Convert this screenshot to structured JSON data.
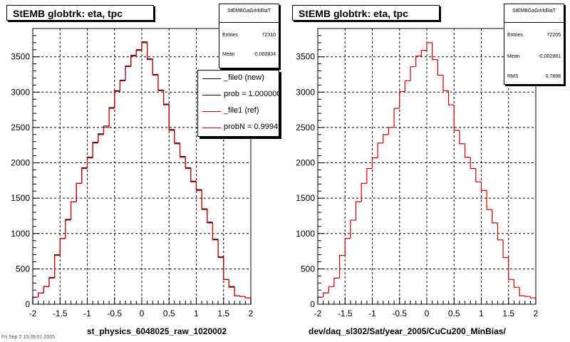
{
  "panels": [
    {
      "title": "StEMB globtrk: eta, tpc",
      "stats": {
        "name": "StEMBGaGrlrkEtaT",
        "rows": [
          {
            "key": "Entries",
            "value": "72310"
          },
          {
            "key": "Mean",
            "value": "-0.002834"
          }
        ]
      },
      "legend": [
        {
          "label": "_file0 (new)",
          "color": "#000000"
        },
        {
          "label": "prob = 1.000000",
          "color": "#000000"
        },
        {
          "label": "_file1 (ref)",
          "color": "#cc0000"
        },
        {
          "label": "probN = 0.99949",
          "color": "#cc0000"
        }
      ],
      "xtitle": "st_physics_6048025_raw_1020002"
    },
    {
      "title": "StEMB globtrk: eta, tpc",
      "stats": {
        "name": "StEMBGaGrlrkEtaT",
        "rows": [
          {
            "key": "Entries",
            "value": "72205"
          },
          {
            "key": "Mean",
            "value": "-0.002881"
          },
          {
            "key": "RMS",
            "value": "0.7898"
          }
        ]
      },
      "xtitle": "dev/daq_sl302/Sat/year_2005/CuCu200_MinBias/"
    }
  ],
  "footer": "Fri Sep 2 15:39:01 2005",
  "chart_data": [
    {
      "type": "bar",
      "title": "StEMB globtrk: eta, tpc",
      "xlabel": "st_physics_6048025_raw_1020002",
      "xlim": [
        -2,
        2
      ],
      "ylim": [
        0,
        3900
      ],
      "xticks": [
        -2,
        -1.5,
        -1,
        -0.5,
        0,
        0.5,
        1,
        1.5,
        2
      ],
      "yticks": [
        0,
        500,
        1000,
        1500,
        2000,
        2500,
        3000,
        3500
      ],
      "grid": true,
      "legend_position": "top-right",
      "bin_edges": [
        -2.0,
        -1.9,
        -1.8,
        -1.7,
        -1.6,
        -1.5,
        -1.4,
        -1.3,
        -1.2,
        -1.1,
        -1.0,
        -0.9,
        -0.8,
        -0.7,
        -0.6,
        -0.5,
        -0.4,
        -0.3,
        -0.2,
        -0.1,
        0.0,
        0.1,
        0.2,
        0.3,
        0.4,
        0.5,
        0.6,
        0.7,
        0.8,
        0.9,
        1.0,
        1.1,
        1.2,
        1.3,
        1.4,
        1.5,
        1.6,
        1.7,
        1.8,
        1.9,
        2.0
      ],
      "series": [
        {
          "name": "_file0 (new)",
          "color": "#000000",
          "values": [
            100,
            160,
            250,
            380,
            700,
            930,
            1200,
            1450,
            1710,
            1930,
            2080,
            2290,
            2410,
            2520,
            2780,
            3020,
            3170,
            3370,
            3520,
            3600,
            3710,
            3470,
            3250,
            3030,
            2830,
            2470,
            2280,
            2090,
            1930,
            1740,
            1620,
            1350,
            1160,
            920,
            670,
            350,
            250,
            120,
            110,
            90
          ]
        },
        {
          "name": "_file1 (ref)",
          "color": "#cc0000",
          "values": [
            100,
            160,
            250,
            370,
            690,
            930,
            1190,
            1450,
            1710,
            1920,
            2070,
            2280,
            2400,
            2500,
            2770,
            3010,
            3160,
            3360,
            3510,
            3590,
            3700,
            3460,
            3240,
            3020,
            2820,
            2460,
            2270,
            2080,
            1920,
            1730,
            1610,
            1340,
            1150,
            910,
            660,
            350,
            240,
            120,
            110,
            90
          ]
        }
      ]
    },
    {
      "type": "bar",
      "title": "StEMB globtrk: eta, tpc",
      "xlabel": "dev/daq_sl302/Sat/year_2005/CuCu200_MinBias/",
      "xlim": [
        -2,
        2
      ],
      "ylim": [
        0,
        3900
      ],
      "xticks": [
        -2,
        -1.5,
        -1,
        -0.5,
        0,
        0.5,
        1,
        1.5,
        2
      ],
      "yticks": [
        0,
        500,
        1000,
        1500,
        2000,
        2500,
        3000,
        3500
      ],
      "grid": true,
      "bin_edges": [
        -2.0,
        -1.9,
        -1.8,
        -1.7,
        -1.6,
        -1.5,
        -1.4,
        -1.3,
        -1.2,
        -1.1,
        -1.0,
        -0.9,
        -0.8,
        -0.7,
        -0.6,
        -0.5,
        -0.4,
        -0.3,
        -0.2,
        -0.1,
        0.0,
        0.1,
        0.2,
        0.3,
        0.4,
        0.5,
        0.6,
        0.7,
        0.8,
        0.9,
        1.0,
        1.1,
        1.2,
        1.3,
        1.4,
        1.5,
        1.6,
        1.7,
        1.8,
        1.9,
        2.0
      ],
      "series": [
        {
          "color": "#cc0000",
          "values": [
            100,
            160,
            250,
            370,
            690,
            930,
            1190,
            1450,
            1710,
            1920,
            2070,
            2280,
            2400,
            2500,
            2770,
            3010,
            3160,
            3360,
            3510,
            3590,
            3700,
            3460,
            3240,
            3020,
            2820,
            2460,
            2270,
            2080,
            1920,
            1730,
            1610,
            1340,
            1150,
            910,
            660,
            350,
            240,
            120,
            110,
            90
          ]
        }
      ]
    }
  ]
}
